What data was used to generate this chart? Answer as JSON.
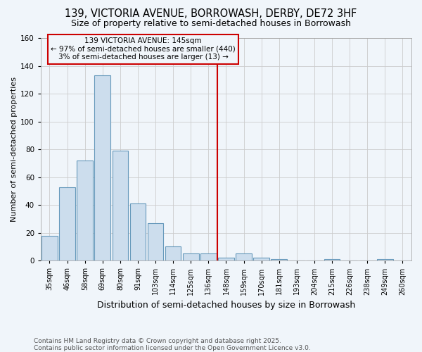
{
  "title": "139, VICTORIA AVENUE, BORROWASH, DERBY, DE72 3HF",
  "subtitle": "Size of property relative to semi-detached houses in Borrowash",
  "xlabel": "Distribution of semi-detached houses by size in Borrowash",
  "ylabel": "Number of semi-detached properties",
  "footer": "Contains HM Land Registry data © Crown copyright and database right 2025.\nContains public sector information licensed under the Open Government Licence v3.0.",
  "bar_labels": [
    "35sqm",
    "46sqm",
    "58sqm",
    "69sqm",
    "80sqm",
    "91sqm",
    "103sqm",
    "114sqm",
    "125sqm",
    "136sqm",
    "148sqm",
    "159sqm",
    "170sqm",
    "181sqm",
    "193sqm",
    "204sqm",
    "215sqm",
    "226sqm",
    "238sqm",
    "249sqm",
    "260sqm"
  ],
  "bar_values": [
    18,
    53,
    72,
    133,
    79,
    41,
    27,
    10,
    5,
    5,
    2,
    5,
    2,
    1,
    0,
    0,
    1,
    0,
    0,
    1,
    0
  ],
  "bar_color": "#ccdded",
  "bar_edge_color": "#6699bb",
  "vline_index": 10,
  "vline_color": "#cc0000",
  "ylim": [
    0,
    160
  ],
  "yticks": [
    0,
    20,
    40,
    60,
    80,
    100,
    120,
    140,
    160
  ],
  "annotation_title": "139 VICTORIA AVENUE: 145sqm",
  "annotation_line1": "← 97% of semi-detached houses are smaller (440)",
  "annotation_line2": "3% of semi-detached houses are larger (13) →",
  "annotation_box_color": "#cc0000",
  "annotation_bg_color": "#f0f5fa",
  "background_color": "#f0f5fa",
  "title_fontsize": 10.5,
  "subtitle_fontsize": 9,
  "ylabel_fontsize": 8,
  "xlabel_fontsize": 9,
  "tick_fontsize": 7,
  "footer_fontsize": 6.5,
  "footer_color": "#555555"
}
